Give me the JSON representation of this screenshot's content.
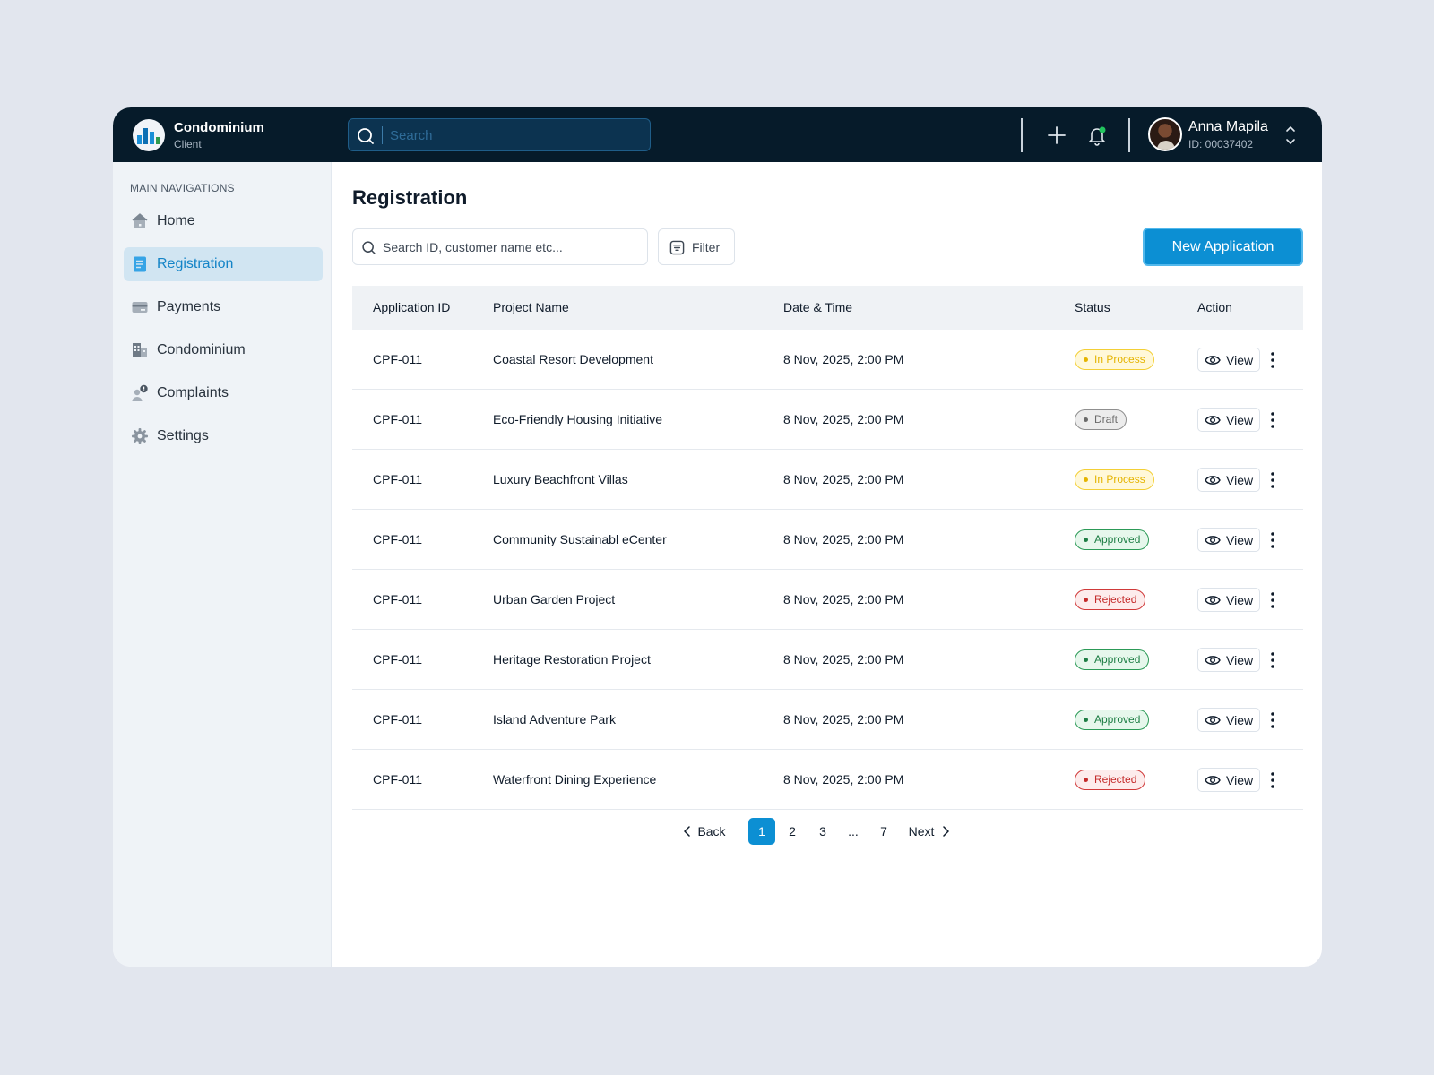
{
  "brand": {
    "title": "Condominium",
    "subtitle": "Client"
  },
  "topbar": {
    "search_placeholder": "Search",
    "user": {
      "name": "Anna Mapila",
      "id": "ID: 00037402"
    }
  },
  "sidebar": {
    "heading": "MAIN NAVIGATIONS",
    "items": [
      {
        "label": "Home",
        "icon": "home-icon"
      },
      {
        "label": "Registration",
        "icon": "document-icon",
        "active": true
      },
      {
        "label": "Payments",
        "icon": "credit-card-icon"
      },
      {
        "label": "Condominium",
        "icon": "building-icon"
      },
      {
        "label": "Complaints",
        "icon": "user-alert-icon"
      },
      {
        "label": "Settings",
        "icon": "gear-icon"
      }
    ]
  },
  "main": {
    "title": "Registration",
    "search_placeholder": "Search ID, customer name etc...",
    "filter_label": "Filter",
    "new_button_label": "New Application"
  },
  "table": {
    "columns": [
      "Application ID",
      "Project Name",
      "Date & Time",
      "Status",
      "Action"
    ],
    "view_label": "View",
    "rows": [
      {
        "id": "CPF-011",
        "name": "Coastal Resort Development",
        "date": "8 Nov, 2025, 2:00 PM",
        "status": "In Process"
      },
      {
        "id": "CPF-011",
        "name": "Eco-Friendly Housing Initiative",
        "date": "8 Nov, 2025, 2:00 PM",
        "status": "Draft"
      },
      {
        "id": "CPF-011",
        "name": "Luxury Beachfront Villas",
        "date": "8 Nov, 2025, 2:00 PM",
        "status": "In Process"
      },
      {
        "id": "CPF-011",
        "name": "Community Sustainabl eCenter",
        "date": "8 Nov, 2025, 2:00 PM",
        "status": "Approved"
      },
      {
        "id": "CPF-011",
        "name": "Urban Garden Project",
        "date": "8 Nov, 2025, 2:00 PM",
        "status": "Rejected"
      },
      {
        "id": "CPF-011",
        "name": "Heritage Restoration Project",
        "date": "8 Nov, 2025, 2:00 PM",
        "status": "Approved"
      },
      {
        "id": "CPF-011",
        "name": "Island Adventure Park",
        "date": "8 Nov, 2025, 2:00 PM",
        "status": "Approved"
      },
      {
        "id": "CPF-011",
        "name": "Waterfront Dining Experience",
        "date": "8 Nov, 2025, 2:00 PM",
        "status": "Rejected"
      }
    ]
  },
  "pagination": {
    "back_label": "Back",
    "next_label": "Next",
    "pages": [
      "1",
      "2",
      "3",
      "...",
      "7"
    ],
    "current": "1"
  },
  "colors": {
    "topbar": "#061b2a",
    "accent": "#0c8fd3",
    "in_process": "#e5b400",
    "draft": "#6a6a6a",
    "approved": "#1d7e44",
    "rejected": "#c42b2b"
  }
}
